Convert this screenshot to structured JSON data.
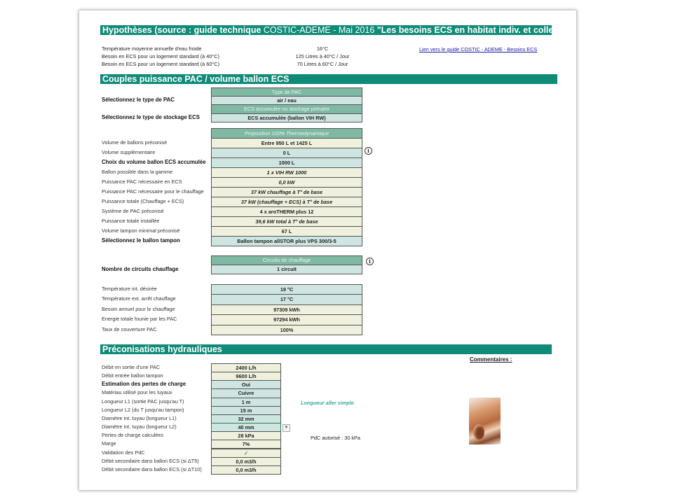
{
  "sections": {
    "hypotheses": {
      "title_bold": "Hypothèses (source : guide technique ",
      "title_thin": "COSTIC-ADEME - Mai 2016 ",
      "title_end": "\"Les besoins ECS en habitat indiv. et collectif\")"
    },
    "couples": {
      "title": "Couples puissance  PAC / volume ballon ECS"
    },
    "hydrau": {
      "title": "Préconisations hydrauliques"
    }
  },
  "hypotheses": [
    {
      "label": "Température moyenne annuelle d'eau froide",
      "value": "16°C"
    },
    {
      "label": "Besoin en ECS pour un logement standard (à 40°C)",
      "value": "125 Litres à 40°C / Jour"
    },
    {
      "label": "Besoin en ECS pour un logement standard (à 60°C)",
      "value": "70 Litres à 60°C / Jour"
    }
  ],
  "link_text": "Lien vers le guide COSTIC - ADEME - Besoins ECS",
  "tables": [
    {
      "rows": [
        {
          "label": "",
          "value": "Type de PAC",
          "fill": "hdr"
        },
        {
          "label": "Sélectionnez le type de PAC",
          "value": "air / eau",
          "fill": "blue",
          "bold_label": true
        },
        {
          "label": "",
          "value": "ECS accumulée ou stockage primaire",
          "fill": "hdr"
        },
        {
          "label": "Sélectionnez le type de stockage ECS",
          "value": "ECS accumulée (ballon VIH RW)",
          "fill": "blue",
          "bold_label": true
        }
      ]
    },
    {
      "rows": [
        {
          "label": "",
          "value": "Proposition 100% Thermodynamique",
          "fill": "hdr",
          "italic": true
        },
        {
          "label": "Volume de ballons préconisé",
          "value": "Entre 950 L et 1425 L",
          "fill": "cream"
        },
        {
          "label": "Volume supplémentaire",
          "value": "0 L",
          "fill": "blue"
        },
        {
          "label": "Choix du volume ballon ECS accumulée",
          "value": "1000 L",
          "fill": "blue",
          "bold_label": true
        },
        {
          "label": "Ballon possible dans la gamme",
          "value": "1 x VIH RW 1000",
          "fill": "cream",
          "italic": true
        },
        {
          "label": "Puissance PAC nécessaire en ECS",
          "value": "0,0 kW",
          "fill": "cream",
          "italic": true
        },
        {
          "label": "Puissance PAC nécessaire pour le chauffage",
          "value": "37 kW chauffage à T° de base",
          "fill": "cream",
          "italic": true
        },
        {
          "label": "Puissance totale (Chauffage + ECS)",
          "value": "37 kW (chauffage + ECS) à T° de base",
          "fill": "cream",
          "italic": true
        },
        {
          "label": "Système de PAC préconisé",
          "value": "4 x aroTHERM plus 12",
          "fill": "cream"
        },
        {
          "label": "Puissance totale installée",
          "value": "39,6 kW total à T° de base",
          "fill": "cream",
          "italic": true
        },
        {
          "label": "Volume tampon minimal préconisé",
          "value": "67 L",
          "fill": "cream"
        },
        {
          "label": "Sélectionnez le ballon tampon",
          "value": "Ballon tampon allSTOR plus VPS 300/3-5",
          "fill": "blue",
          "bold_label": true
        }
      ]
    },
    {
      "rows": [
        {
          "label": "",
          "value": "Circuits de chauffage",
          "fill": "hdr"
        },
        {
          "label": "Nombre de circuits chauffage",
          "value": "1 circuit",
          "fill": "blue",
          "bold_label": true
        }
      ]
    },
    {
      "rows": [
        {
          "label": "Température int. désirée",
          "value": "19 °C",
          "fill": "blue"
        },
        {
          "label": "Température ext. arrêt chauffage",
          "value": "17 °C",
          "fill": "blue"
        },
        {
          "label": "Besoin annuel pour le chauffage",
          "value": "97309 kWh",
          "fill": "cream"
        },
        {
          "label": "Energie totale founie par les PAC",
          "value": "97294 kWh",
          "fill": "cream"
        },
        {
          "label": "Taux de couverture PAC",
          "value": "100%",
          "fill": "cream"
        }
      ]
    },
    {
      "rows": [
        {
          "label": "Débit en sortie d'une PAC",
          "value": "2400 L/h",
          "fill": "cream"
        },
        {
          "label": "Débit entrée ballon tampon",
          "value": "9600 L/h",
          "fill": "cream"
        },
        {
          "label": "Estimation des pertes de charge",
          "value": "Oui",
          "fill": "blue",
          "bold_label": true
        },
        {
          "label": "Matériau utilisé pour les tuyaux",
          "value": "Cuivre",
          "fill": "blue"
        },
        {
          "label": "Longueur L1 (sortie PAC jusqu'au T)",
          "value": "1 m",
          "fill": "blue"
        },
        {
          "label": "Longueur L2 (du T jusqu'au tampon)",
          "value": "15 m",
          "fill": "blue"
        },
        {
          "label": "Diamètre int. tuyau (longueur L1)",
          "value": "32 mm",
          "fill": "blue"
        },
        {
          "label": "Diamètre int. tuyau (longueur L2)",
          "value": "40 mm",
          "fill": "blue"
        },
        {
          "label": "Pertes de charge calculées",
          "value": "28 kPa",
          "fill": "cream"
        },
        {
          "label": "Marge",
          "value": "7%",
          "fill": "cream"
        },
        {
          "label": "Validation des PdC",
          "value": "✓",
          "fill": "cream",
          "check": true
        },
        {
          "label": "Débit secondaire dans ballon ECS (si ΔT5)",
          "value": "0,0 m3/h",
          "fill": "cream"
        },
        {
          "label": "Débit secondaire dans ballon ECS (si ΔT10)",
          "value": "0,0 m3/h",
          "fill": "cream"
        }
      ]
    }
  ],
  "notes": {
    "longueur": "Longueur aller simple",
    "pdc": "PdC autorisé : 30 kPa",
    "commentaires": "Commentaires :"
  },
  "colors": {
    "section_bar": "#0f8b78",
    "header_cell": "#7fb8a3",
    "input_cell": "#cfe5e2",
    "output_cell": "#eff1de"
  }
}
